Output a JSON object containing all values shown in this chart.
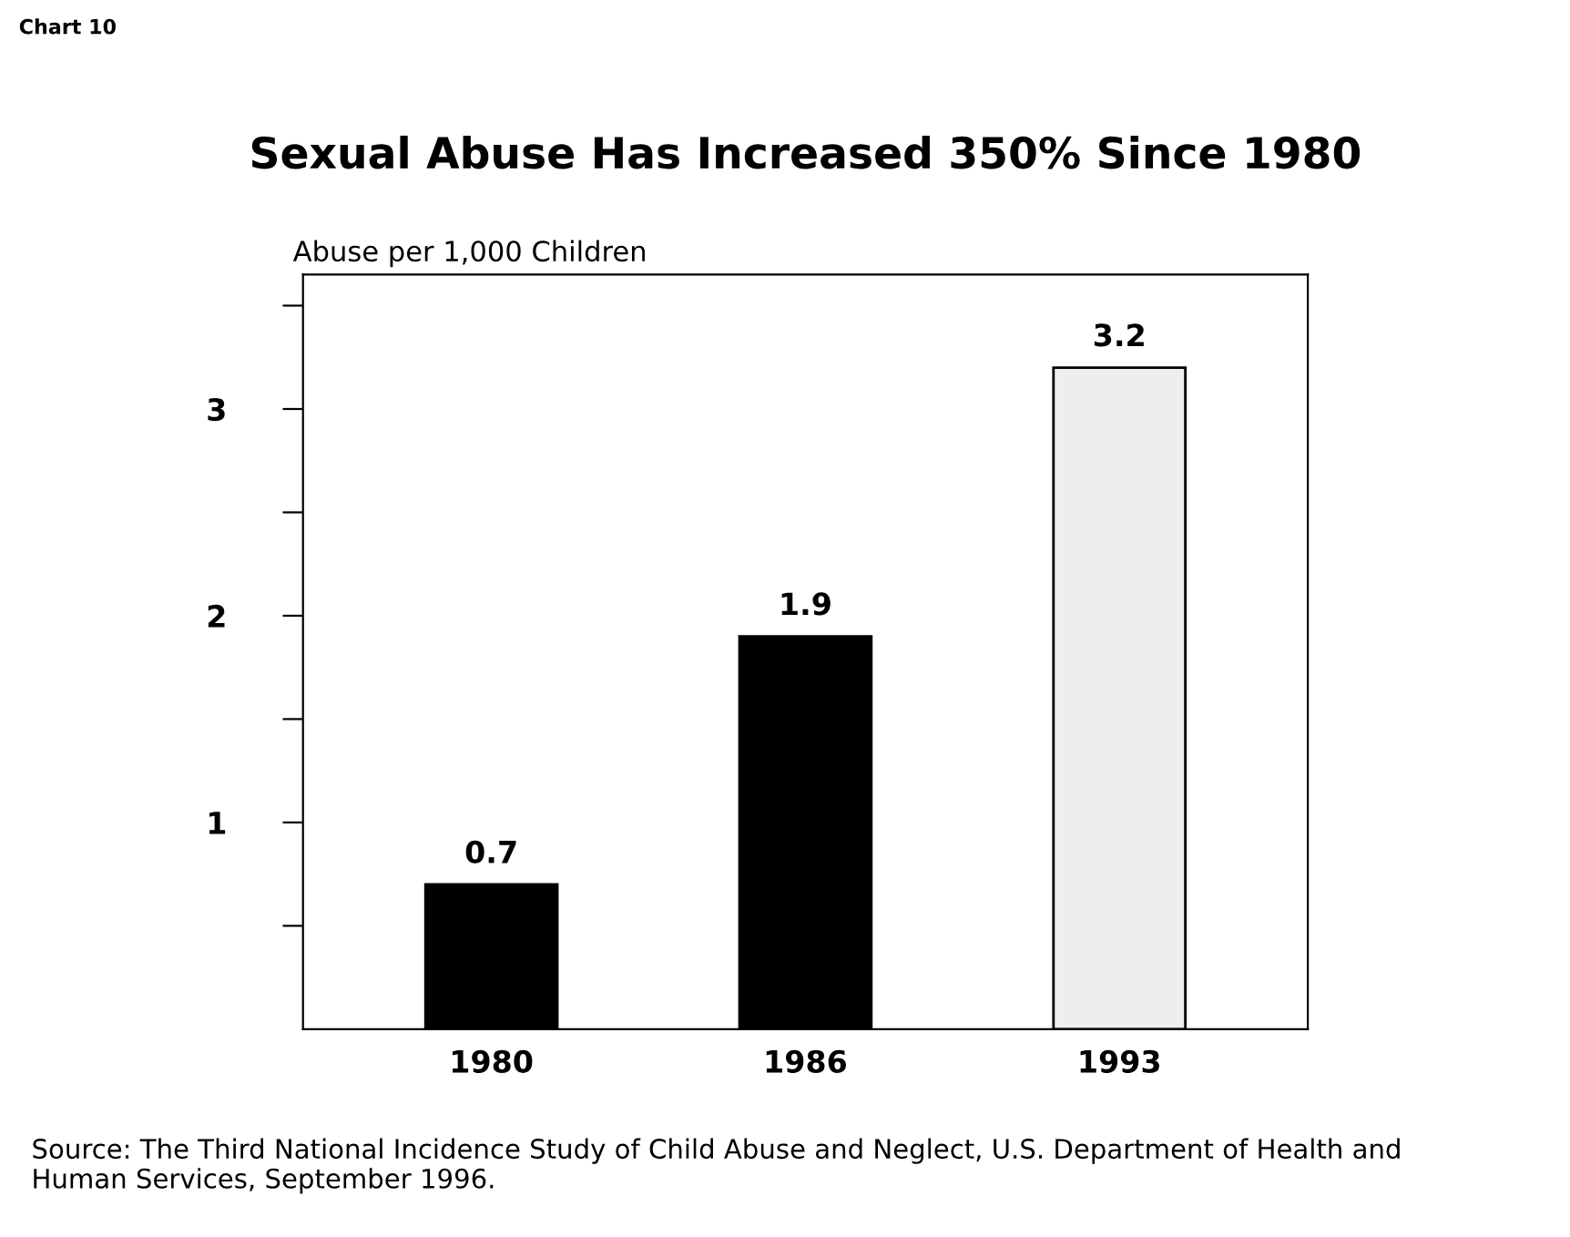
{
  "chart_data": {
    "type": "bar",
    "title": "Sexual Abuse Has Increased 350% Since 1980",
    "ylabel": "Abuse per 1,000 Children",
    "categories": [
      "1980",
      "1986",
      "1993"
    ],
    "values": [
      0.7,
      1.9,
      3.2
    ],
    "colors": [
      "#000000",
      "#000000",
      "#eeeeee"
    ],
    "data_labels": true,
    "ylim": [
      0,
      3.65
    ],
    "yticks": [
      {
        "value": 0.5,
        "label": null
      },
      1,
      {
        "value": 1.5,
        "label": null
      },
      2,
      {
        "value": 2.5,
        "label": null
      },
      3,
      {
        "value": 3.5,
        "label": null
      }
    ],
    "grid": false,
    "annotations": [
      "Chart 10",
      "Source: The Third National Incidence Study of Child Abuse and Neglect, U.S. Department of Health and Human Services, September 1996."
    ]
  }
}
